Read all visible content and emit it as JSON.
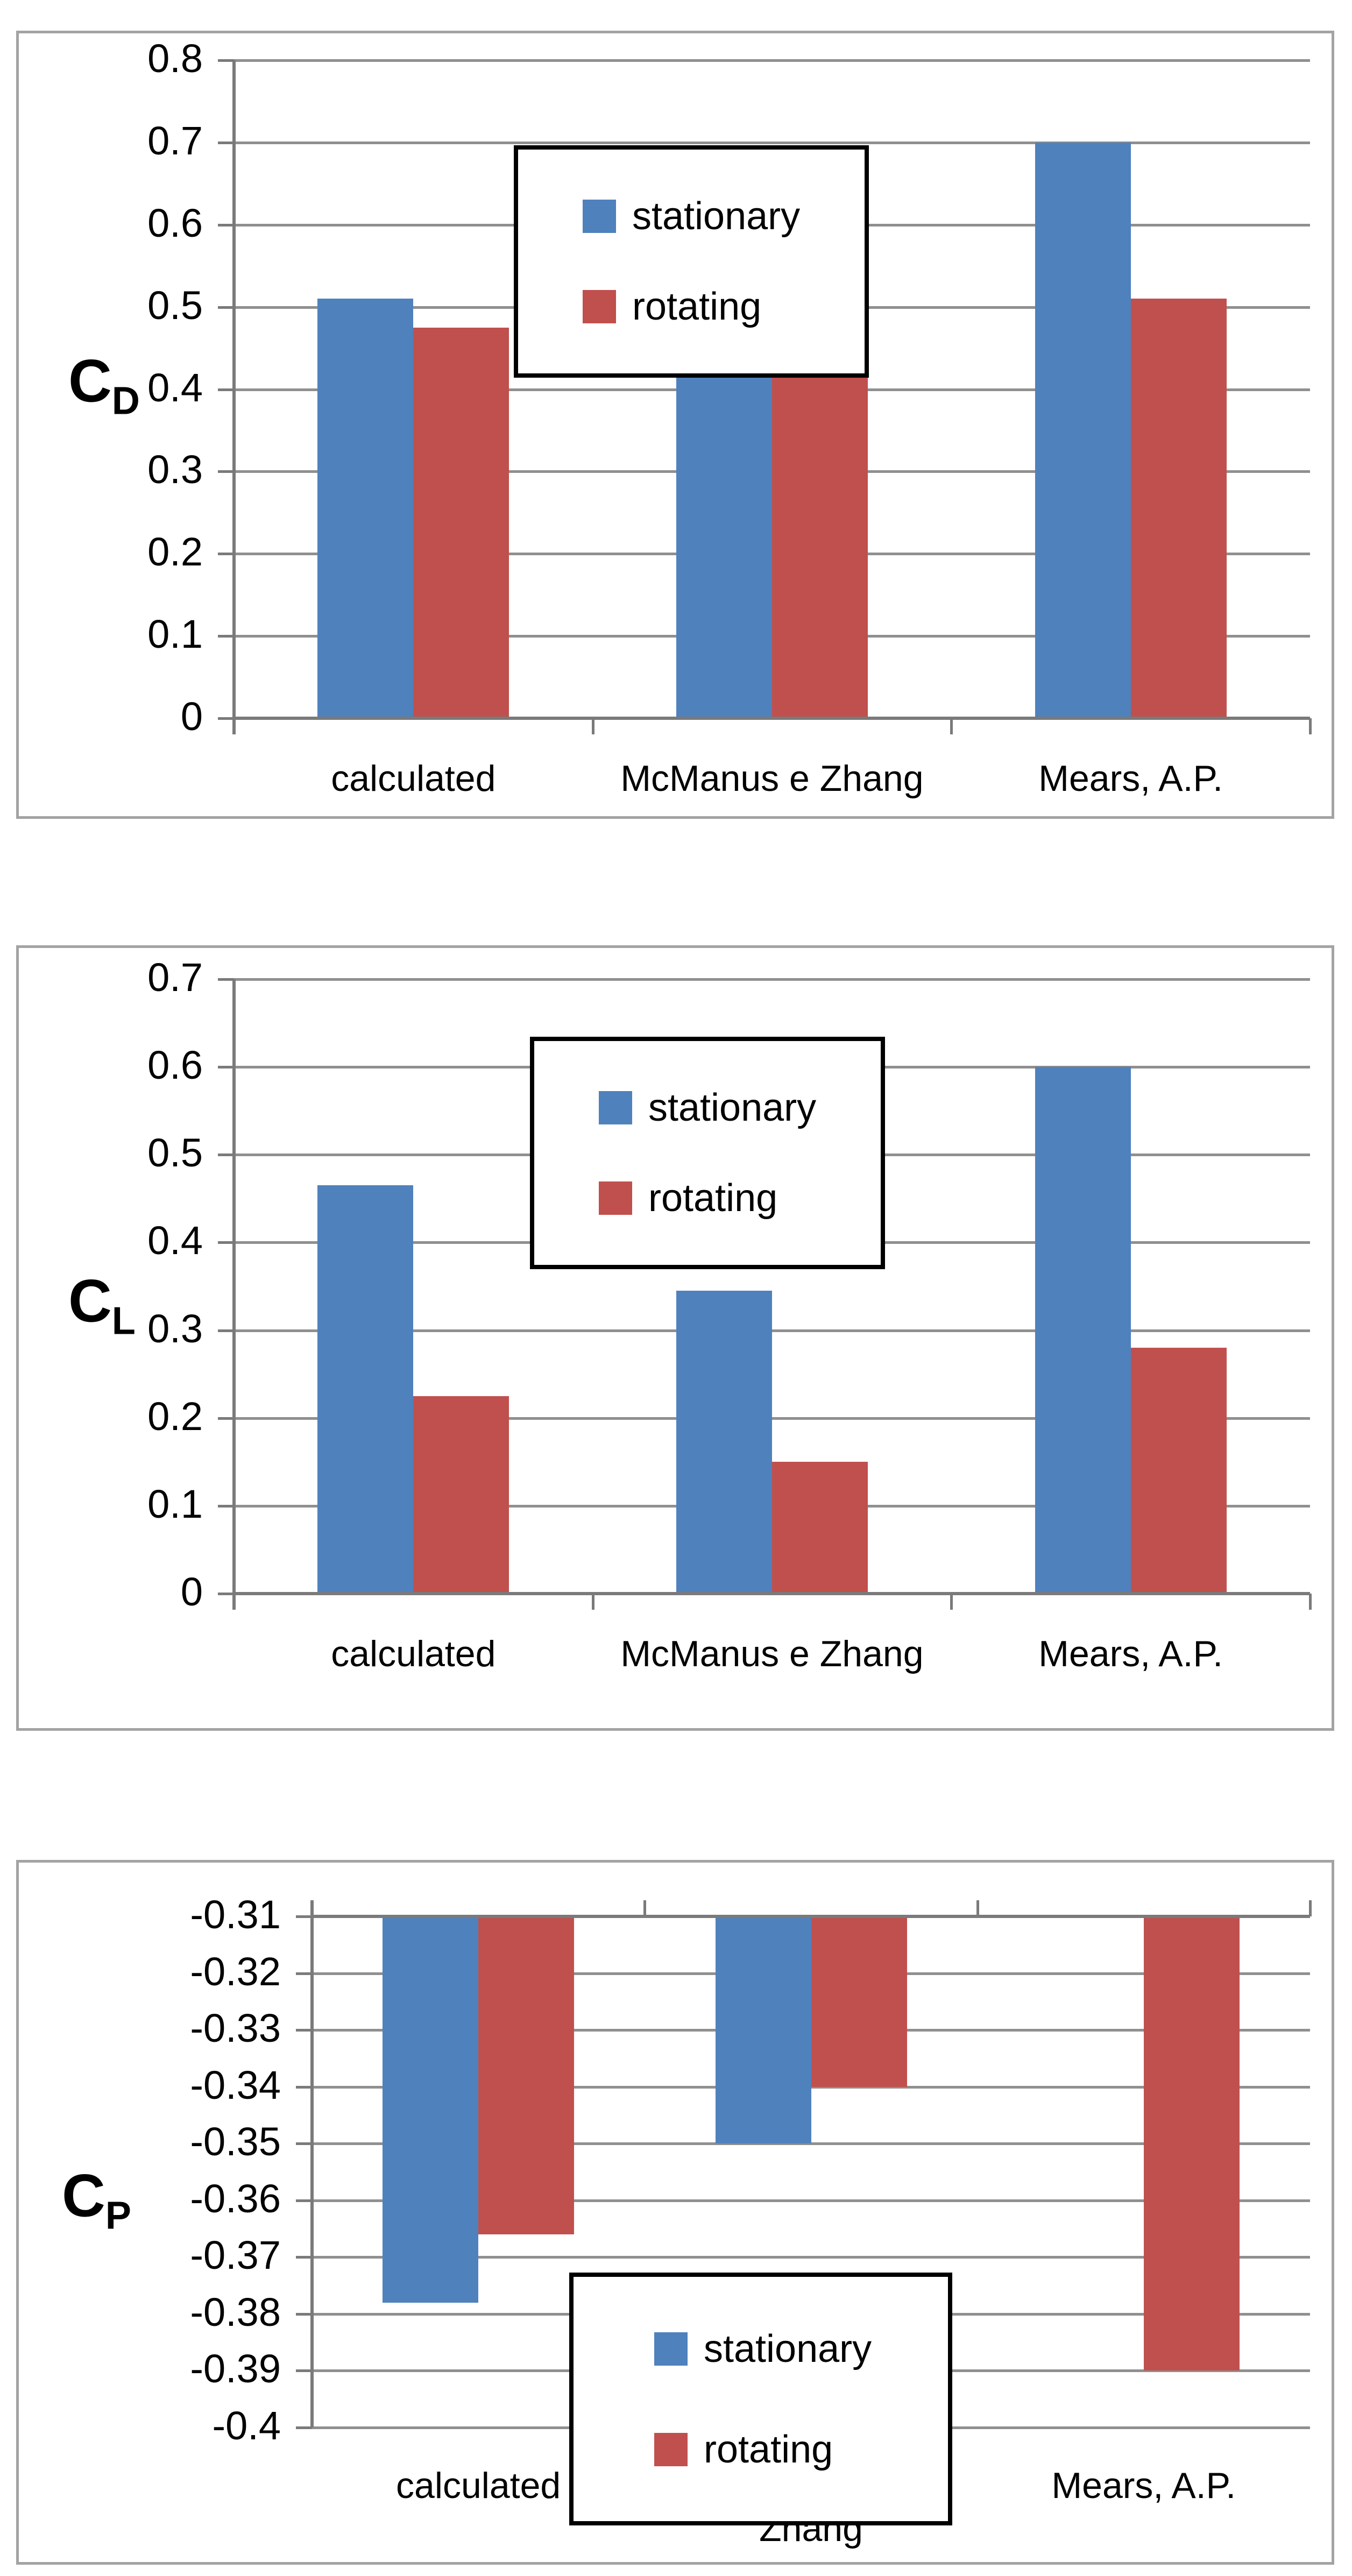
{
  "colors": {
    "stationary": "#4F81BD",
    "rotating": "#C0504D",
    "gridline": "#8f8f8f",
    "axis": "#7a7a7a",
    "chart_border": "#a3a3a3",
    "legend_border": "#000000",
    "text": "#000000",
    "background": "#ffffff"
  },
  "legend": {
    "items": [
      {
        "label": "stationary"
      },
      {
        "label": "rotating"
      }
    ]
  },
  "chart_data": [
    {
      "type": "bar",
      "title": "",
      "xlabel": "",
      "ylabel": "C_D",
      "ylabel_main": "C",
      "ylabel_sub": "D",
      "categories": [
        "calculated",
        "McManus e Zhang",
        "Mears, A.P."
      ],
      "categories_display": [
        "calculated",
        "McManus e Zhang",
        "Mears, A.P."
      ],
      "series": [
        {
          "name": "stationary",
          "color": "#4F81BD",
          "values": [
            0.51,
            0.47,
            0.7
          ]
        },
        {
          "name": "rotating",
          "color": "#C0504D",
          "values": [
            0.475,
            0.45,
            0.51
          ]
        }
      ],
      "ylim": [
        0,
        0.8
      ],
      "yticks": [
        "0.8",
        "0.7",
        "0.6",
        "0.5",
        "0.4",
        "0.3",
        "0.2",
        "0.1",
        "0"
      ],
      "grid": true,
      "legend_position": "top-center"
    },
    {
      "type": "bar",
      "title": "",
      "xlabel": "",
      "ylabel": "C_L",
      "ylabel_main": "C",
      "ylabel_sub": "L",
      "categories": [
        "calculated",
        "McManus e Zhang",
        "Mears, A.P."
      ],
      "categories_display": [
        "calculated",
        "McManus e Zhang",
        "Mears, A.P."
      ],
      "series": [
        {
          "name": "stationary",
          "color": "#4F81BD",
          "values": [
            0.465,
            0.345,
            0.6
          ]
        },
        {
          "name": "rotating",
          "color": "#C0504D",
          "values": [
            0.225,
            0.15,
            0.28
          ]
        }
      ],
      "ylim": [
        0,
        0.7
      ],
      "yticks": [
        "0.7",
        "0.6",
        "0.5",
        "0.4",
        "0.3",
        "0.2",
        "0.1",
        "0"
      ],
      "grid": true,
      "legend_position": "top-center"
    },
    {
      "type": "bar",
      "title": "",
      "xlabel": "",
      "ylabel": "C_P",
      "ylabel_main": "C",
      "ylabel_sub": "P",
      "categories": [
        "calculated",
        "McManus e Zhang",
        "Mears, A.P."
      ],
      "categories_display": [
        "calculated",
        "McManus e\nZhang",
        "Mears, A.P."
      ],
      "series": [
        {
          "name": "stationary",
          "color": "#4F81BD",
          "values": [
            -0.378,
            -0.35,
            null
          ]
        },
        {
          "name": "rotating",
          "color": "#C0504D",
          "values": [
            -0.366,
            -0.34,
            -0.39
          ]
        }
      ],
      "ylim": [
        -0.4,
        -0.31
      ],
      "yticks": [
        "-0.31",
        "-0.32",
        "-0.33",
        "-0.34",
        "-0.35",
        "-0.36",
        "-0.37",
        "-0.38",
        "-0.39",
        "-0.4"
      ],
      "grid": true,
      "bars_hang_from_top": true,
      "legend_position": "bottom-center"
    }
  ]
}
